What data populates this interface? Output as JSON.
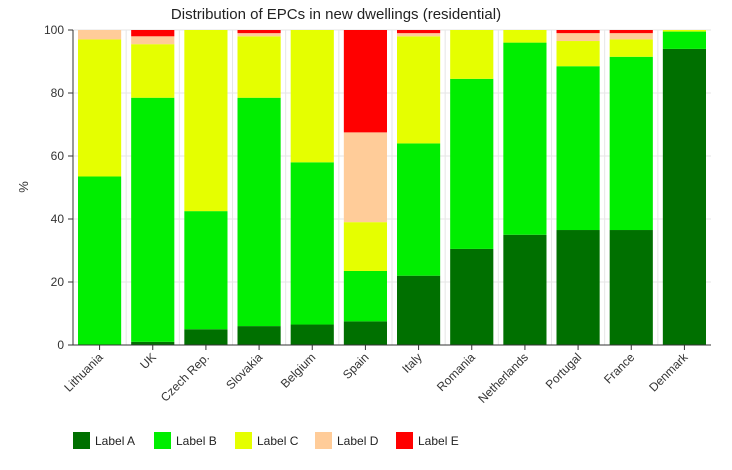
{
  "chart_data": {
    "type": "bar",
    "stacked": true,
    "title": "Distribution of EPCs in new dwellings (residential)",
    "xlabel": "",
    "ylabel": "%",
    "ylim": [
      0,
      100
    ],
    "yticks": [
      0,
      20,
      40,
      60,
      80,
      100
    ],
    "grid": true,
    "legend_position": "bottom-left",
    "categories": [
      "Lithuania",
      "UK",
      "Czech Rep.",
      "Slovakia",
      "Belgium",
      "Spain",
      "Italy",
      "Romania",
      "Netherlands",
      "Portugal",
      "France",
      "Denmark"
    ],
    "series": [
      {
        "name": "Label A",
        "color": "#007000",
        "values": [
          0,
          1,
          5,
          6,
          6.5,
          7.5,
          22,
          30.5,
          35,
          36.5,
          36.5,
          94
        ]
      },
      {
        "name": "Label B",
        "color": "#00ee00",
        "values": [
          53.5,
          77.5,
          37.5,
          72.5,
          51.5,
          16,
          42,
          54,
          61,
          52,
          55,
          5.5
        ]
      },
      {
        "name": "Label C",
        "color": "#e5ff00",
        "values": [
          43.5,
          17,
          57.5,
          19.5,
          42,
          15.5,
          34,
          15.5,
          4,
          8,
          5.5,
          0.5
        ]
      },
      {
        "name": "Label D",
        "color": "#ffcc99",
        "values": [
          3,
          2.5,
          0,
          1,
          0,
          28.5,
          1,
          0,
          0,
          2.5,
          2,
          0
        ]
      },
      {
        "name": "Label E",
        "color": "#ff0000",
        "values": [
          0,
          2,
          0,
          1,
          0,
          32.5,
          1,
          0,
          0,
          1,
          1,
          0
        ]
      }
    ]
  }
}
